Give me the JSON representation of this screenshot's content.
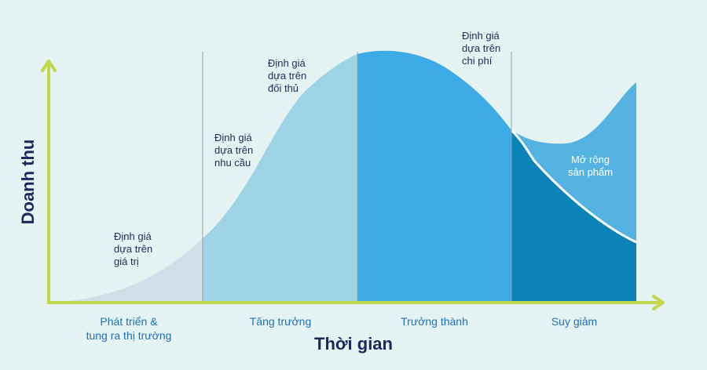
{
  "axes": {
    "x_title": "Thời gian",
    "y_title": "Doanh thu"
  },
  "stages": [
    {
      "line1": "Phát triển &",
      "line2": "tung ra thị trường"
    },
    {
      "line1": "Tăng trưởng",
      "line2": ""
    },
    {
      "line1": "Trưởng thành",
      "line2": ""
    },
    {
      "line1": "Suy giảm",
      "line2": ""
    }
  ],
  "notes": [
    {
      "lines": [
        "Định giá",
        "dựa trên",
        "giá trị"
      ]
    },
    {
      "lines": [
        "Định giá",
        "dựa trên",
        "nhu cầu"
      ]
    },
    {
      "lines": [
        "Định giá",
        "dựa trên",
        "đối thủ"
      ]
    },
    {
      "lines": [
        "Định giá",
        "dựa trên",
        "chi phí"
      ]
    },
    {
      "lines": [
        "Mở rộng",
        "sản phẩm"
      ]
    }
  ],
  "colors": {
    "background": "#e5f3f3",
    "axis": "#c4d64a",
    "stage1": "#cfe0ea",
    "stage2": "#9fd3e6",
    "stage3": "#3dace6",
    "stage4": "#0b82b8",
    "extension": "#55b3e1",
    "text_dark": "#1b2a5a",
    "text_stage": "#1f6fb8"
  }
}
